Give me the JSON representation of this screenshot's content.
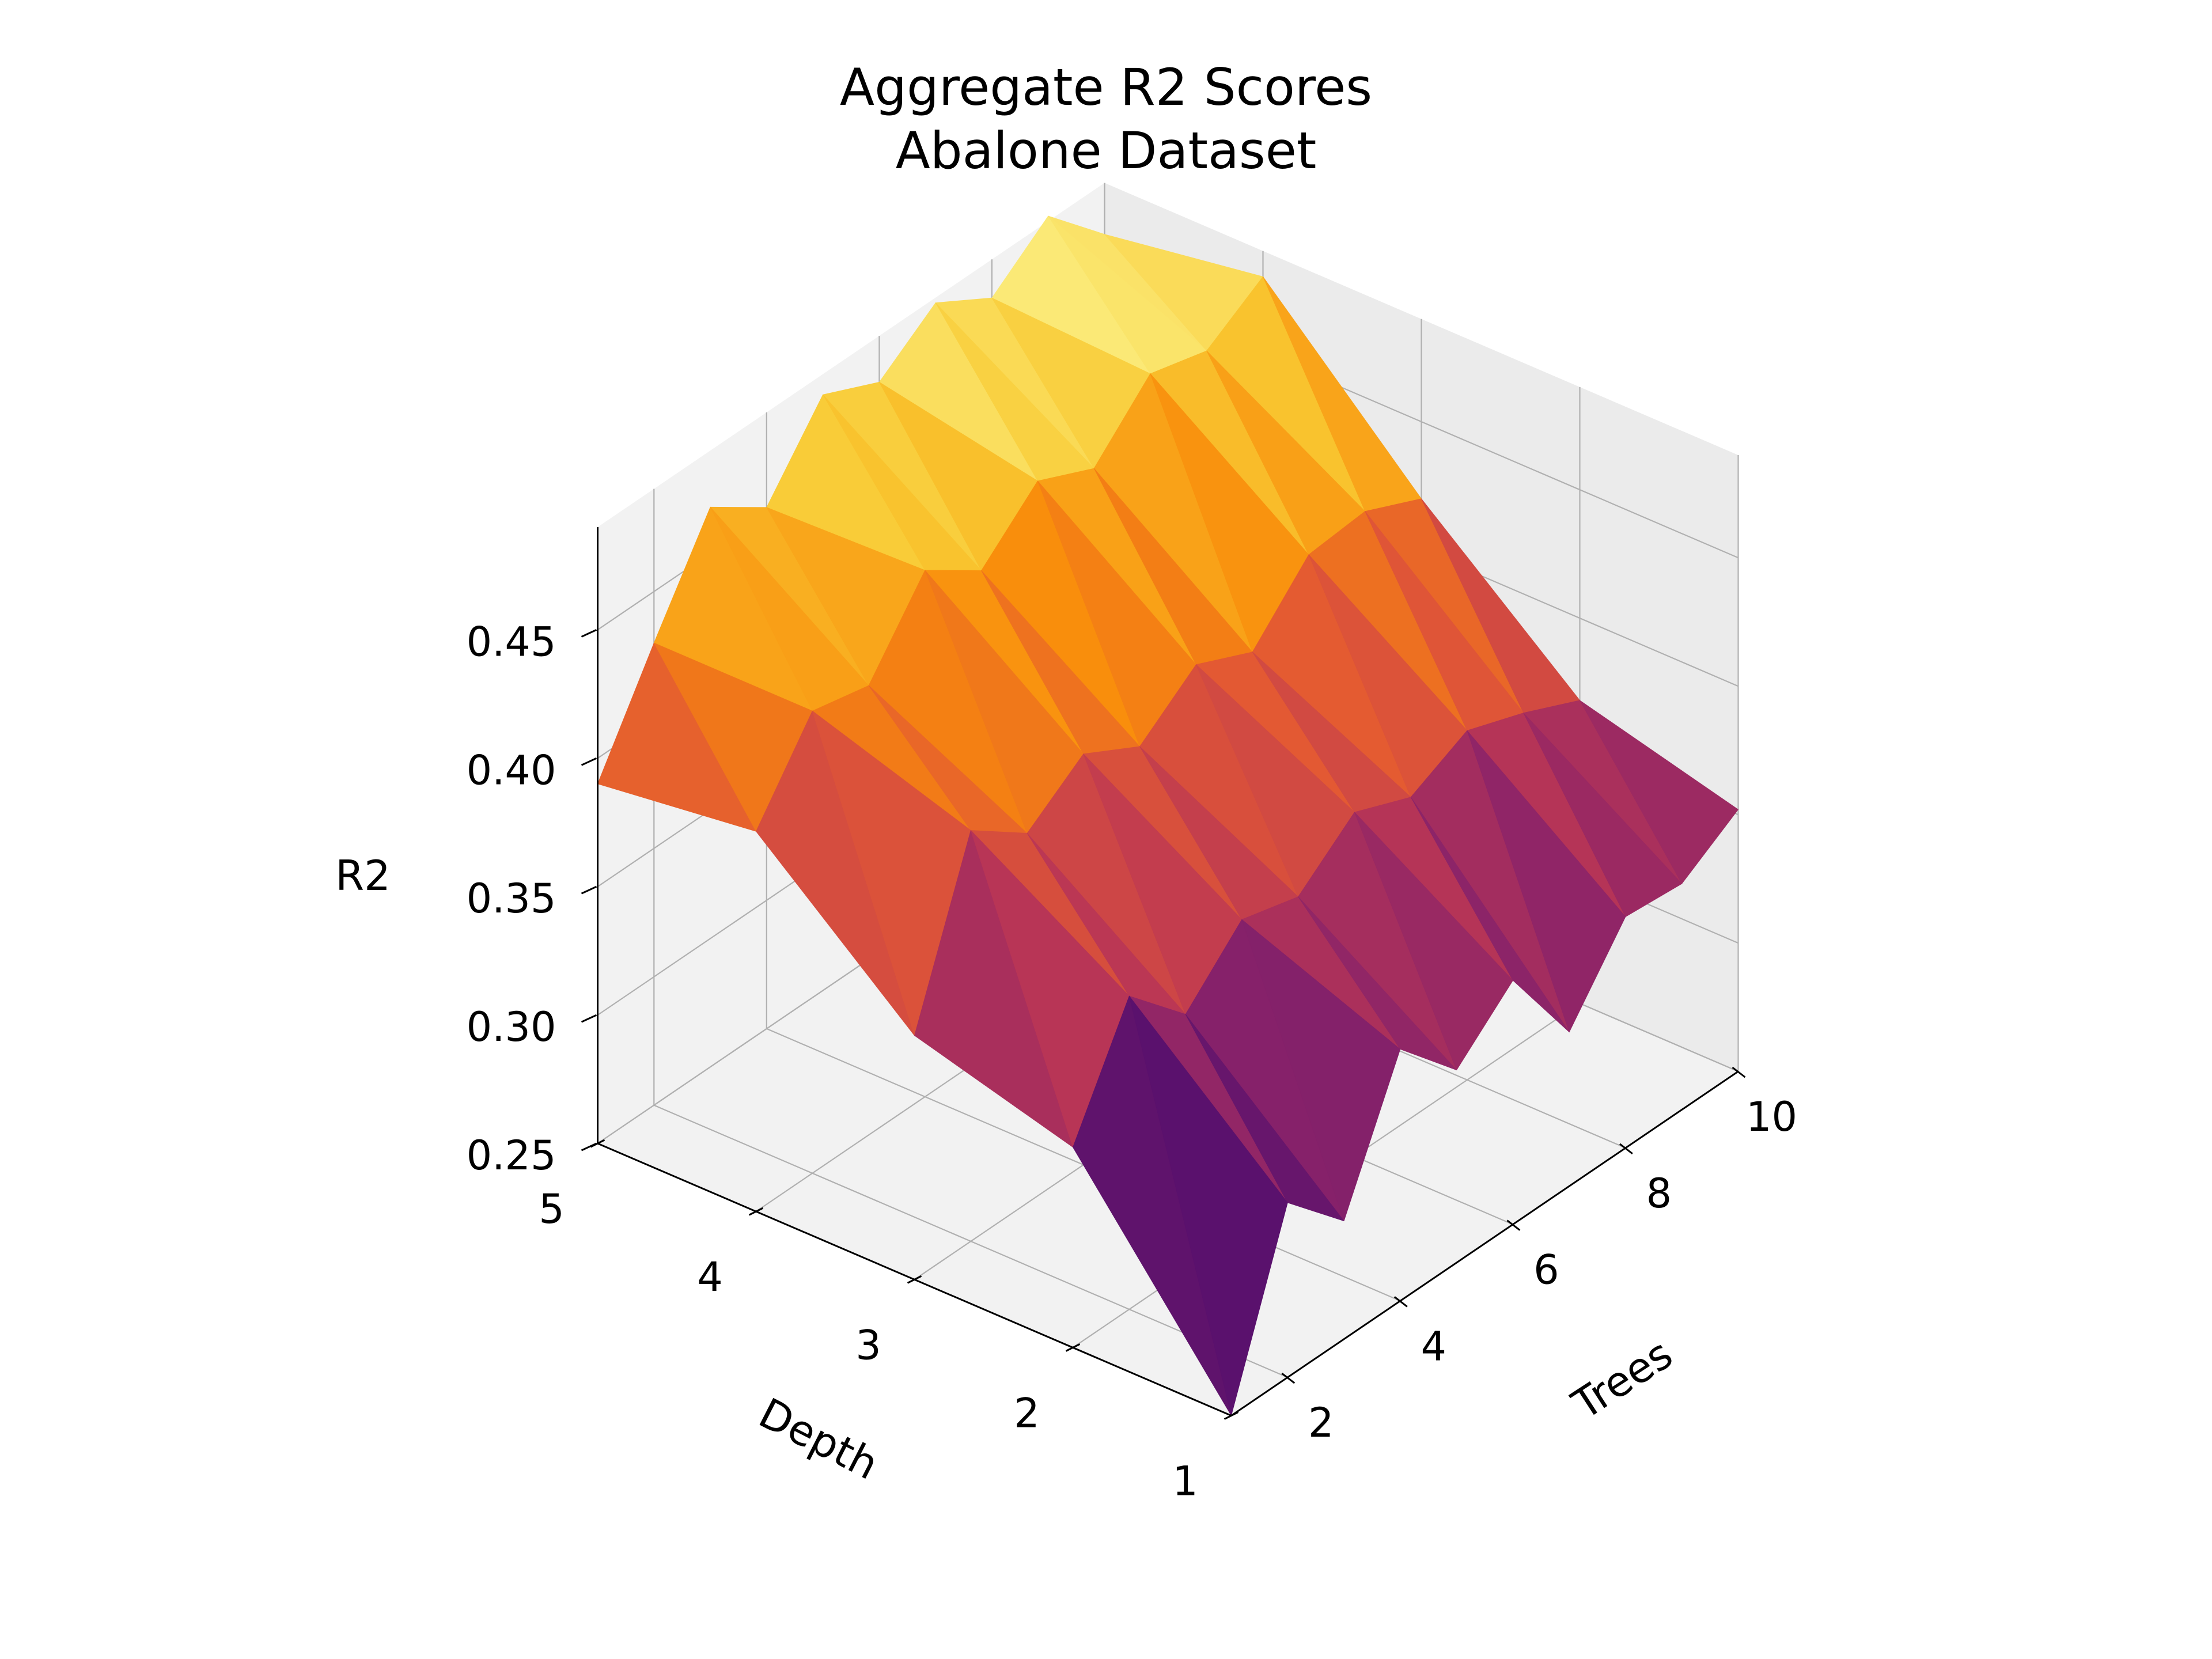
{
  "chart_data": {
    "type": "surface3d",
    "title": "Aggregate R2 Scores",
    "subtitle": "Abalone Dataset",
    "xlabel": "Trees",
    "ylabel": "Depth",
    "zlabel": "R2",
    "x_ticks": [
      "2",
      "4",
      "6",
      "8",
      "10"
    ],
    "y_ticks": [
      "1",
      "2",
      "3",
      "4",
      "5"
    ],
    "z_ticks": [
      "0.25",
      "0.30",
      "0.35",
      "0.40",
      "0.45"
    ],
    "xlim": [
      1,
      10
    ],
    "ylim": [
      1,
      5
    ],
    "zlim": [
      0.25,
      0.49
    ],
    "colormap": "inferno",
    "grid": true,
    "trees": [
      1,
      2,
      3,
      4,
      5,
      6,
      7,
      8,
      9,
      10
    ],
    "depth": [
      1,
      2,
      3,
      4,
      5
    ],
    "r2": [
      [
        0.25,
        0.318,
        0.296,
        0.348,
        0.325,
        0.345,
        0.31,
        0.34,
        0.338,
        0.352
      ],
      [
        0.328,
        0.372,
        0.35,
        0.372,
        0.366,
        0.384,
        0.375,
        0.386,
        0.378,
        0.368
      ],
      [
        0.345,
        0.41,
        0.394,
        0.41,
        0.398,
        0.415,
        0.405,
        0.428,
        0.43,
        0.42
      ],
      [
        0.398,
        0.43,
        0.425,
        0.455,
        0.44,
        0.46,
        0.45,
        0.472,
        0.466,
        0.48
      ],
      [
        0.39,
        0.43,
        0.468,
        0.453,
        0.482,
        0.472,
        0.488,
        0.475,
        0.492,
        0.47
      ]
    ]
  }
}
